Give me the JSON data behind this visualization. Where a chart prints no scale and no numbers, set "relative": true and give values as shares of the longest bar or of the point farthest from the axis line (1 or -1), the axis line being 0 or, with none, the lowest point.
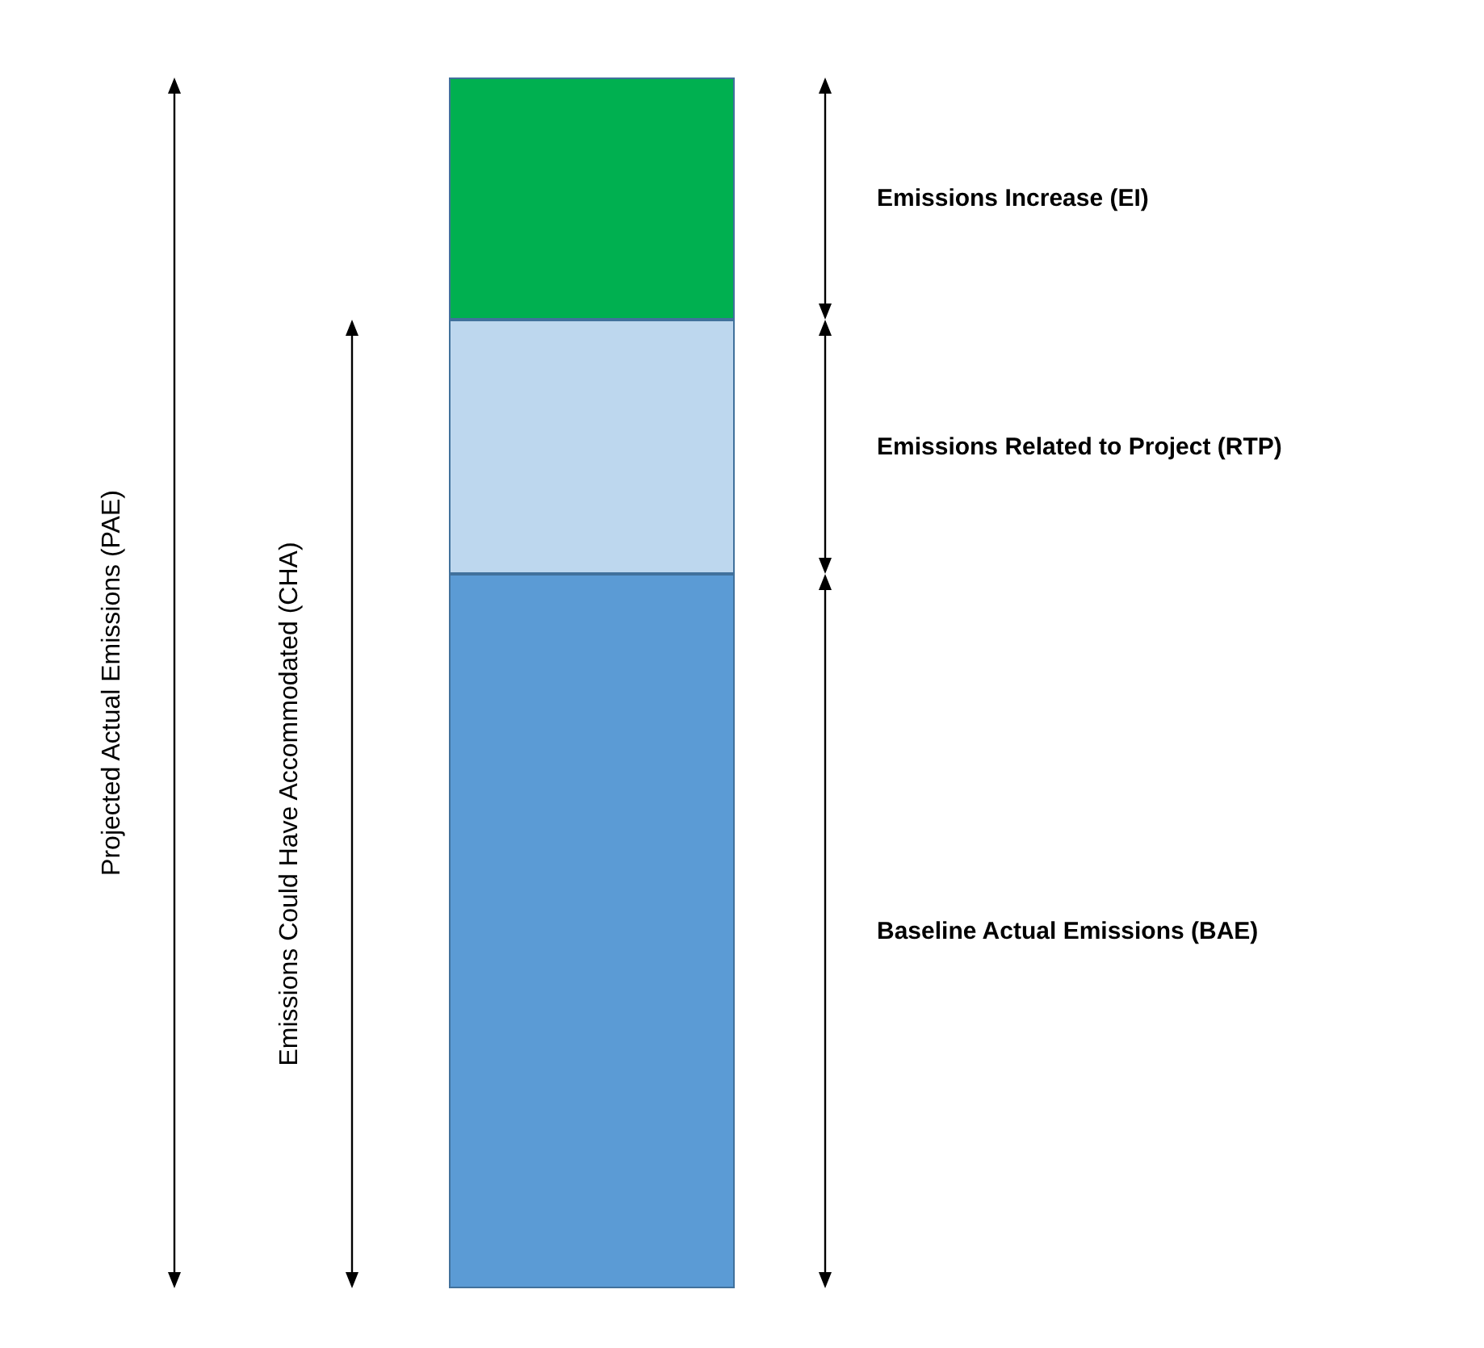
{
  "chart_data": {
    "type": "bar",
    "stacked": true,
    "relative": true,
    "categories": [
      null
    ],
    "legend": false,
    "series": [
      {
        "name": "Baseline Actual Emissions (BAE)",
        "color": "#5b9bd5",
        "values": [
          0.59
        ]
      },
      {
        "name": "Emissions Related to Project (RTP)",
        "color": "#bdd7ee",
        "values": [
          0.21
        ]
      },
      {
        "name": "Emissions Increase (EI)",
        "color": "#00b050",
        "values": [
          0.2
        ]
      }
    ],
    "annotations": [
      "Projected Actual Emissions (PAE)",
      "Emissions Could Have Accommodated (CHA)"
    ]
  }
}
